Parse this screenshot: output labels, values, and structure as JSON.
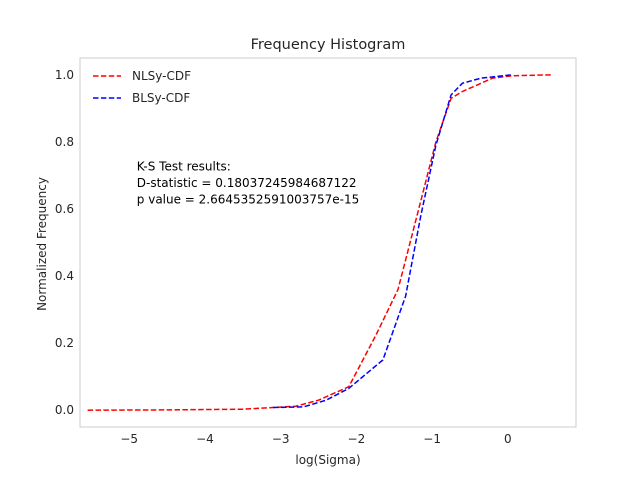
{
  "chart_data": {
    "type": "line",
    "title": "Frequency Histogram",
    "xlabel": "log(Sigma)",
    "ylabel": "Normalized Frequency",
    "xlim": [
      -5.65,
      0.9
    ],
    "ylim": [
      -0.05,
      1.05
    ],
    "xticks": [
      -5,
      -4,
      -3,
      -2,
      -1,
      0
    ],
    "xtick_labels": [
      "−5",
      "−4",
      "−3",
      "−2",
      "−1",
      "0"
    ],
    "yticks": [
      0.0,
      0.2,
      0.4,
      0.6,
      0.8,
      1.0
    ],
    "ytick_labels": [
      "0.0",
      "0.2",
      "0.4",
      "0.6",
      "0.8",
      "1.0"
    ],
    "grid": false,
    "legend": "top-left",
    "series": [
      {
        "name": "NLSy-CDF",
        "color": "#ff0000",
        "dash": "dashed",
        "x": [
          -5.55,
          -4.5,
          -3.5,
          -2.8,
          -2.5,
          -2.1,
          -1.75,
          -1.45,
          -1.2,
          -0.95,
          -0.75,
          -0.6,
          -0.2,
          0.05,
          0.6
        ],
        "y": [
          0.0,
          0.001,
          0.003,
          0.012,
          0.03,
          0.07,
          0.22,
          0.36,
          0.58,
          0.8,
          0.93,
          0.95,
          0.99,
          0.997,
          1.0
        ]
      },
      {
        "name": "BLSy-CDF",
        "color": "#0000ff",
        "dash": "dashed",
        "x": [
          -3.1,
          -2.7,
          -2.4,
          -2.1,
          -1.65,
          -1.35,
          -1.15,
          -0.95,
          -0.75,
          -0.6,
          -0.35,
          0.05
        ],
        "y": [
          0.008,
          0.01,
          0.03,
          0.065,
          0.15,
          0.34,
          0.58,
          0.79,
          0.94,
          0.975,
          0.99,
          1.0
        ]
      }
    ],
    "annotation": {
      "lines": [
        "K-S Test results:",
        "D-statistic = 0.18037245984687122",
        "p value = 2.6645352591003757e-15"
      ],
      "x": -4.9,
      "y": 0.715
    }
  }
}
